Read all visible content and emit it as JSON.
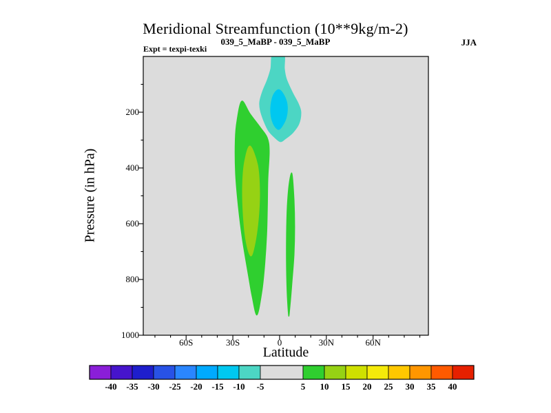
{
  "chart_data": {
    "type": "contour",
    "title": "Meridional Streamfunction (10**9kg/m-2)",
    "subtitle": "039_5_MaBP - 039_5_MaBP",
    "right_label": "JJA",
    "left_label": "Expt = texpi-texki",
    "xlabel": "Latitude",
    "ylabel": "Pressure (in hPa)",
    "units": "10**9 kg/m-2",
    "plot_background": "#dcdcdc",
    "background_level": "-5 to 5",
    "x_axis": {
      "min": -87.5,
      "max": 95.5,
      "minor_step": 10,
      "major_ticks": [
        {
          "value": -60,
          "label": "60S"
        },
        {
          "value": -30,
          "label": "30S"
        },
        {
          "value": 0,
          "label": "0"
        },
        {
          "value": 30,
          "label": "30N"
        },
        {
          "value": 60,
          "label": "60N"
        }
      ]
    },
    "y_axis": {
      "min": 0,
      "max": 1000,
      "minor_step": 100,
      "major_ticks": [
        {
          "value": 200,
          "label": "200"
        },
        {
          "value": 400,
          "label": "400"
        },
        {
          "value": 600,
          "label": "600"
        },
        {
          "value": 800,
          "label": "800"
        },
        {
          "value": 1000,
          "label": "1000"
        }
      ]
    },
    "colorbar": {
      "boundaries": [
        -45,
        -40,
        -35,
        -30,
        -25,
        -20,
        -15,
        -10,
        -5,
        5,
        10,
        15,
        20,
        25,
        30,
        35,
        40,
        45
      ],
      "tick_labels": [
        "-40",
        "-35",
        "-30",
        "-25",
        "-20",
        "-15",
        "-10",
        "-5",
        "5",
        "10",
        "15",
        "20",
        "25",
        "30",
        "35",
        "40"
      ],
      "colors": [
        "#8a1ed8",
        "#4614cc",
        "#1e1ecc",
        "#2852e6",
        "#2a86ff",
        "#00aaff",
        "#00c8f0",
        "#4cd6c4",
        "#dcdcdc",
        "#2fcf2f",
        "#96d214",
        "#cfe000",
        "#f5ea0a",
        "#ffc800",
        "#ff9600",
        "#ff5a00",
        "#e62000"
      ]
    },
    "regions": [
      {
        "name": "southern-positive-cell",
        "level": "5 to 10",
        "color": "#2fcf2f",
        "points": [
          [
            -24.3,
            160
          ],
          [
            -19,
            205
          ],
          [
            -12.4,
            254
          ],
          [
            -7.9,
            291
          ],
          [
            -6.6,
            340
          ],
          [
            -7.5,
            440
          ],
          [
            -7.8,
            540
          ],
          [
            -8.3,
            640
          ],
          [
            -9.7,
            760
          ],
          [
            -11.5,
            850
          ],
          [
            -14.6,
            928
          ],
          [
            -17.7,
            860
          ],
          [
            -19.9,
            790
          ],
          [
            -23.8,
            660
          ],
          [
            -26.5,
            540
          ],
          [
            -28.3,
            420
          ],
          [
            -28.5,
            300
          ],
          [
            -27.4,
            230
          ]
        ]
      },
      {
        "name": "positive-cell-core",
        "level": "10 to 15",
        "color": "#96d214",
        "points": [
          [
            -19,
            321
          ],
          [
            -14.1,
            390
          ],
          [
            -12.8,
            489
          ],
          [
            -13.7,
            588
          ],
          [
            -15.9,
            674
          ],
          [
            -18.5,
            716
          ],
          [
            -21.6,
            662
          ],
          [
            -23.4,
            563
          ],
          [
            -23.8,
            464
          ],
          [
            -22.5,
            378
          ]
        ]
      },
      {
        "name": "northern-positive-band",
        "level": "5 to 10",
        "color": "#2fcf2f",
        "points": [
          [
            8,
            420
          ],
          [
            9.3,
            513
          ],
          [
            9.7,
            612
          ],
          [
            9.3,
            711
          ],
          [
            8,
            810
          ],
          [
            6.7,
            896
          ],
          [
            5.8,
            931
          ],
          [
            4.9,
            859
          ],
          [
            4.4,
            760
          ],
          [
            4.4,
            637
          ],
          [
            4.9,
            538
          ],
          [
            6.2,
            452
          ]
        ]
      },
      {
        "name": "upper-negative-cell",
        "level": "-10 to -5",
        "color": "#4cd6c4",
        "points": [
          [
            -4.4,
            -8
          ],
          [
            2.7,
            -8
          ],
          [
            3.1,
            44
          ],
          [
            4.4,
            81
          ],
          [
            8.4,
            131
          ],
          [
            11.9,
            168
          ],
          [
            13.7,
            200
          ],
          [
            12.4,
            242
          ],
          [
            8.4,
            274
          ],
          [
            3.6,
            296
          ],
          [
            0.5,
            306
          ],
          [
            -3.1,
            291
          ],
          [
            -7.1,
            267
          ],
          [
            -10.1,
            232
          ],
          [
            -12.4,
            193
          ],
          [
            -12.8,
            163
          ],
          [
            -11,
            126
          ],
          [
            -7.9,
            84
          ],
          [
            -5.7,
            44
          ]
        ]
      },
      {
        "name": "negative-cell-core",
        "level": "-15 to -10",
        "color": "#00c8f0",
        "points": [
          [
            -0.4,
            119
          ],
          [
            2.7,
            138
          ],
          [
            4.9,
            173
          ],
          [
            4.4,
            217
          ],
          [
            1.8,
            249
          ],
          [
            -0.9,
            262
          ],
          [
            -4,
            242
          ],
          [
            -5.7,
            205
          ],
          [
            -5.3,
            163
          ],
          [
            -3.5,
            133
          ]
        ]
      }
    ]
  }
}
